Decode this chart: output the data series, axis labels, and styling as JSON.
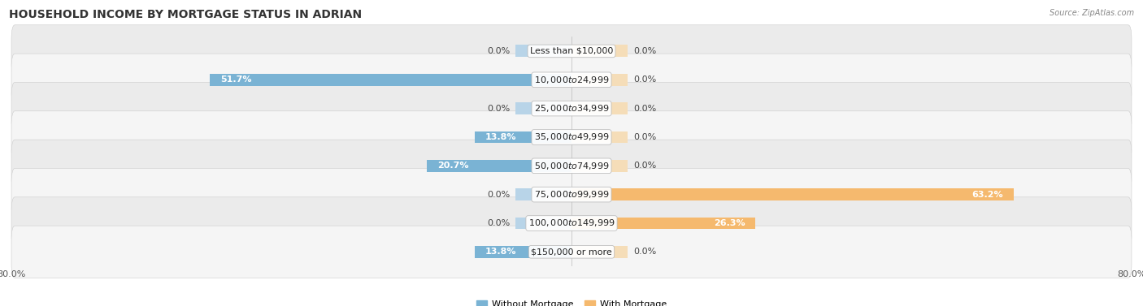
{
  "title": "HOUSEHOLD INCOME BY MORTGAGE STATUS IN ADRIAN",
  "source": "Source: ZipAtlas.com",
  "categories": [
    "Less than $10,000",
    "$10,000 to $24,999",
    "$25,000 to $34,999",
    "$35,000 to $49,999",
    "$50,000 to $74,999",
    "$75,000 to $99,999",
    "$100,000 to $149,999",
    "$150,000 or more"
  ],
  "without_mortgage": [
    0.0,
    51.7,
    0.0,
    13.8,
    20.7,
    0.0,
    0.0,
    13.8
  ],
  "with_mortgage": [
    0.0,
    0.0,
    0.0,
    0.0,
    0.0,
    63.2,
    26.3,
    0.0
  ],
  "color_without": "#7ab3d4",
  "color_with": "#f5b96e",
  "color_without_stub": "#b8d4e8",
  "color_with_stub": "#f5ddb8",
  "axis_min": -80.0,
  "axis_max": 80.0,
  "legend_labels": [
    "Without Mortgage",
    "With Mortgage"
  ],
  "row_bg_odd": "#ebebeb",
  "row_bg_even": "#f5f5f5",
  "title_fontsize": 10,
  "label_fontsize": 8,
  "tick_fontsize": 8,
  "value_fontsize": 8
}
